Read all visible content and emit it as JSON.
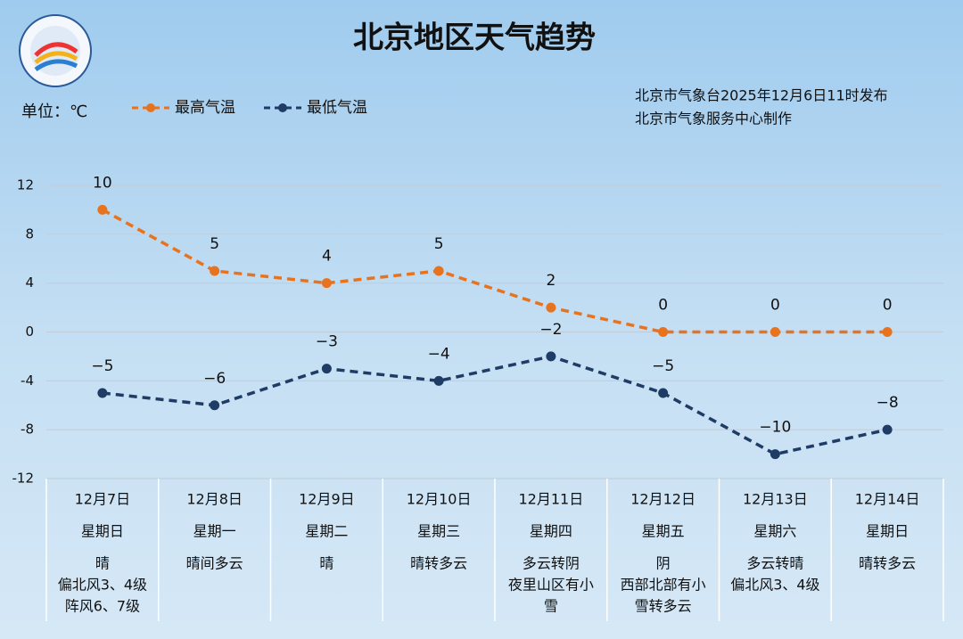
{
  "chart_data": {
    "type": "line",
    "title": "北京地区天气趋势",
    "y_label": "单位：℃",
    "annotations": [
      "北京市气象台2025年12月6日11时发布",
      "北京市气象服务中心制作"
    ],
    "categories": [
      "12月7日",
      "12月8日",
      "12月9日",
      "12月10日",
      "12月11日",
      "12月12日",
      "12月13日",
      "12月14日"
    ],
    "weekdays": [
      "星期日",
      "星期一",
      "星期二",
      "星期三",
      "星期四",
      "星期五",
      "星期六",
      "星期日"
    ],
    "weather": [
      [
        "晴",
        "偏北风3、4级",
        "阵风6、7级"
      ],
      [
        "晴间多云"
      ],
      [
        "晴"
      ],
      [
        "晴转多云"
      ],
      [
        "多云转阴",
        "夜里山区有小",
        "雪"
      ],
      [
        "阴",
        "西部北部有小",
        "雪转多云"
      ],
      [
        "多云转晴",
        "偏北风3、4级"
      ],
      [
        "晴转多云"
      ]
    ],
    "series": [
      {
        "name": "最高气温",
        "color": "#e8731f",
        "values": [
          10,
          5,
          4,
          5,
          2,
          0,
          0,
          0
        ]
      },
      {
        "name": "最低气温",
        "color": "#1f3c66",
        "values": [
          -5,
          -6,
          -3,
          -4,
          -2,
          -5,
          -10,
          -8
        ],
        "value_labels": [
          "−5",
          "−6",
          "−3",
          "−4",
          "−2",
          "−5",
          "−10",
          "−8"
        ]
      }
    ],
    "ylim": [
      -12,
      12
    ],
    "yticks": [
      12,
      8,
      4,
      0,
      -4,
      -8,
      -12
    ],
    "grid": true,
    "legend": "top-left",
    "line_style": "dashed"
  }
}
